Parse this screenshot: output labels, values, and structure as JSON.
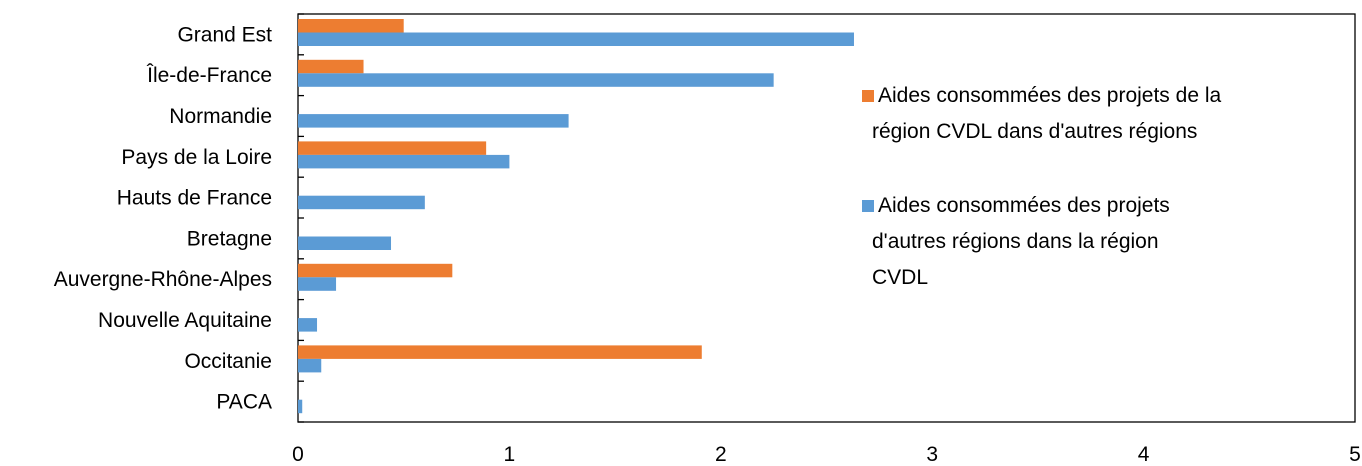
{
  "chart_data": {
    "type": "bar",
    "orientation": "horizontal",
    "categories": [
      "Grand Est",
      "Île-de-France",
      "Normandie",
      "Pays de la Loire",
      "Hauts de France",
      "Bretagne",
      "Auvergne-Rhône-Alpes",
      "Nouvelle Aquitaine",
      "Occitanie",
      "PACA"
    ],
    "series": [
      {
        "name": "Aides consommées des projets de la région CVDL dans d'autres régions",
        "legend_lines": [
          "Aides consommées des projets de la",
          "région CVDL dans d'autres régions"
        ],
        "color": "#ED7D31",
        "values": [
          0.5,
          0.31,
          0,
          0.89,
          0,
          0,
          0.73,
          0,
          1.91,
          0
        ]
      },
      {
        "name": "Aides consommées des projets d'autres régions dans la région CVDL",
        "legend_lines": [
          "Aides consommées des projets",
          "d'autres régions dans la région",
          "CVDL"
        ],
        "color": "#5B9BD5",
        "values": [
          2.63,
          2.25,
          1.28,
          1.0,
          0.6,
          0.44,
          0.18,
          0.09,
          0.11,
          0.02
        ]
      }
    ],
    "xlim": [
      0,
      5
    ],
    "xticks": [
      "0",
      "1",
      "2",
      "3",
      "4",
      "5"
    ],
    "title": "",
    "xlabel": "",
    "ylabel": "",
    "grid": false,
    "legend_position": "right"
  }
}
